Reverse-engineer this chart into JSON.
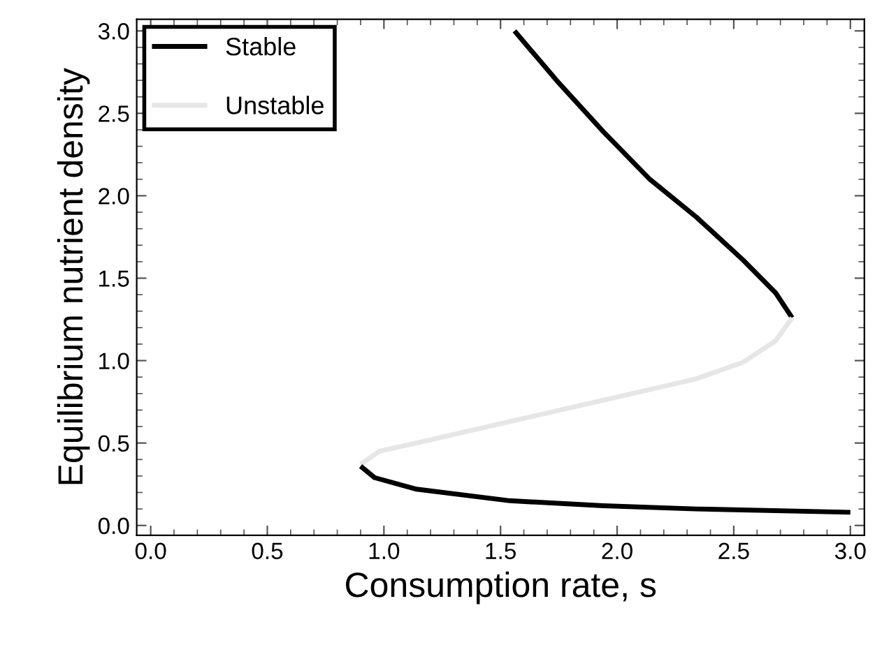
{
  "chart_data": {
    "type": "line",
    "xlabel": "Consumption rate, s",
    "ylabel": "Equilibrium nutrient density",
    "series": [
      {
        "name": "Stable",
        "color": "#000000",
        "x": [
          1.56,
          1.74,
          1.94,
          2.14,
          2.34,
          2.54,
          2.68,
          2.75
        ],
        "values": [
          3.0,
          2.7,
          2.39,
          2.1,
          1.87,
          1.61,
          1.41,
          1.26
        ]
      },
      {
        "name": "Unstable",
        "color": "#e6e6e6",
        "x": [
          2.75,
          2.68,
          2.54,
          2.34,
          1.94,
          1.54,
          1.14,
          0.98,
          0.9
        ],
        "values": [
          1.26,
          1.12,
          0.99,
          0.89,
          0.76,
          0.63,
          0.5,
          0.45,
          0.37
        ]
      },
      {
        "type": "line",
        "color": "#000000",
        "x": [
          0.9,
          0.96,
          1.14,
          1.54,
          1.94,
          2.34,
          3.0
        ],
        "values": [
          0.36,
          0.29,
          0.22,
          0.15,
          0.12,
          0.1,
          0.08
        ]
      }
    ],
    "xlim": [
      -0.06,
      3.06
    ],
    "ylim": [
      -0.06,
      3.07
    ],
    "xticks": [
      {
        "value": 0,
        "label": "0.0"
      },
      {
        "value": 0.5,
        "label": "0.5"
      },
      {
        "value": 1,
        "label": "1.0"
      },
      {
        "value": 1.5,
        "label": "1.5"
      },
      {
        "value": 2,
        "label": "2.0"
      },
      {
        "value": 2.5,
        "label": "2.5"
      },
      {
        "value": 3,
        "label": "3.0"
      }
    ],
    "yticks": [
      {
        "value": 0,
        "label": "0.0"
      },
      {
        "value": 0.5,
        "label": "0.5"
      },
      {
        "value": 1,
        "label": "1.0"
      },
      {
        "value": 1.5,
        "label": "1.5"
      },
      {
        "value": 2,
        "label": "2.0"
      },
      {
        "value": 2.5,
        "label": "2.5"
      },
      {
        "value": 3,
        "label": "3.0"
      }
    ],
    "grid": false,
    "legend": "top left",
    "line_style": "solid",
    "marker": "none"
  }
}
